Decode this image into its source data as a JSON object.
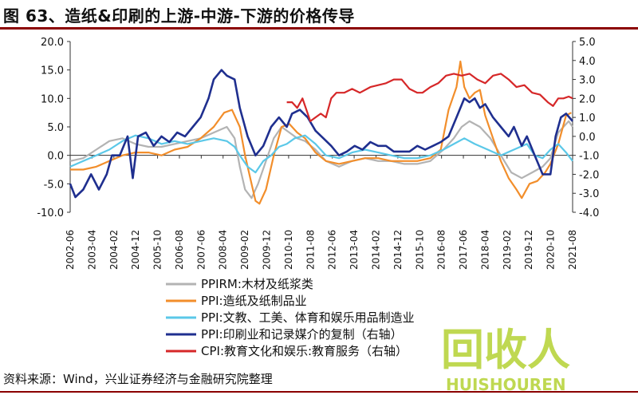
{
  "figure": {
    "title": "图 63、造纸&印刷的上游-中游-下游的价格传导",
    "source": "资料来源：Wind，兴业证券经济与金融研究院整理",
    "watermark_text": "回收人",
    "watermark_sub": "HUISHOUREN"
  },
  "chart_data": {
    "type": "line",
    "x_ticks": [
      "2002-06",
      "2003-04",
      "2004-02",
      "2004-12",
      "2005-10",
      "2006-08",
      "2007-06",
      "2008-04",
      "2009-02",
      "2009-12",
      "2010-10",
      "2011-08",
      "2012-06",
      "2013-04",
      "2014-02",
      "2014-12",
      "2015-10",
      "2016-08",
      "2017-06",
      "2018-04",
      "2019-02",
      "2019-12",
      "2020-10",
      "2021-08"
    ],
    "y_left": {
      "min": -10,
      "max": 20,
      "ticks": [
        "20.0",
        "15.0",
        "10.0",
        "5.0",
        "0.0",
        "-5.0",
        "-10.0"
      ]
    },
    "y_right": {
      "min": -4,
      "max": 5,
      "ticks": [
        "5.0",
        "4.0",
        "3.0",
        "2.0",
        "1.0",
        "0.0",
        "-1.0",
        "-2.0",
        "-3.0",
        "-4.0"
      ]
    },
    "grid": false,
    "legend_position": "bottom-center",
    "series": [
      {
        "name": "PPIRM:木材及纸浆类",
        "color": "#b3b3b3",
        "axis": "left",
        "points": [
          [
            2002.5,
            -1
          ],
          [
            2003.0,
            -0.5
          ],
          [
            2003.5,
            1
          ],
          [
            2004.0,
            2.5
          ],
          [
            2004.5,
            3
          ],
          [
            2005.0,
            2
          ],
          [
            2005.5,
            1.5
          ],
          [
            2006.0,
            1.5
          ],
          [
            2006.5,
            2
          ],
          [
            2007.0,
            2.5
          ],
          [
            2007.5,
            3
          ],
          [
            2008.0,
            4
          ],
          [
            2008.5,
            5
          ],
          [
            2008.8,
            3
          ],
          [
            2009.0,
            -2
          ],
          [
            2009.2,
            -6
          ],
          [
            2009.45,
            -7.5
          ],
          [
            2009.7,
            -5
          ],
          [
            2010.0,
            -1
          ],
          [
            2010.3,
            3
          ],
          [
            2010.6,
            5
          ],
          [
            2010.9,
            4
          ],
          [
            2011.2,
            3
          ],
          [
            2011.5,
            2.5
          ],
          [
            2011.9,
            1
          ],
          [
            2012.3,
            -1
          ],
          [
            2012.8,
            -2
          ],
          [
            2013.3,
            -1
          ],
          [
            2013.8,
            -0.5
          ],
          [
            2014.3,
            -1
          ],
          [
            2014.8,
            -1
          ],
          [
            2015.3,
            -1.5
          ],
          [
            2015.8,
            -1.5
          ],
          [
            2016.3,
            -1
          ],
          [
            2016.8,
            1
          ],
          [
            2017.2,
            3
          ],
          [
            2017.5,
            5
          ],
          [
            2017.8,
            6
          ],
          [
            2018.2,
            5
          ],
          [
            2018.6,
            3
          ],
          [
            2019.0,
            0
          ],
          [
            2019.4,
            -3
          ],
          [
            2019.8,
            -4
          ],
          [
            2020.2,
            -3
          ],
          [
            2020.6,
            -2
          ],
          [
            2020.9,
            -0.5
          ],
          [
            2021.2,
            4
          ],
          [
            2021.6,
            6
          ],
          [
            2021.75,
            5
          ]
        ]
      },
      {
        "name": "PPI:造纸及纸制品业",
        "color": "#f28e2b",
        "axis": "left",
        "points": [
          [
            2002.5,
            -2.5
          ],
          [
            2003.0,
            -2.5
          ],
          [
            2003.5,
            -2
          ],
          [
            2004.0,
            -1
          ],
          [
            2004.5,
            0
          ],
          [
            2005.0,
            0.5
          ],
          [
            2005.5,
            0.5
          ],
          [
            2006.0,
            0
          ],
          [
            2006.5,
            1
          ],
          [
            2007.0,
            1.5
          ],
          [
            2007.5,
            3
          ],
          [
            2008.0,
            5
          ],
          [
            2008.4,
            7.5
          ],
          [
            2008.7,
            8
          ],
          [
            2009.0,
            5
          ],
          [
            2009.2,
            0
          ],
          [
            2009.4,
            -4
          ],
          [
            2009.6,
            -8
          ],
          [
            2009.75,
            -8.5
          ],
          [
            2010.0,
            -6
          ],
          [
            2010.3,
            0
          ],
          [
            2010.6,
            5
          ],
          [
            2010.9,
            5.5
          ],
          [
            2011.2,
            4
          ],
          [
            2011.5,
            3
          ],
          [
            2011.9,
            0.5
          ],
          [
            2012.3,
            -1
          ],
          [
            2012.8,
            -1.5
          ],
          [
            2013.3,
            -1
          ],
          [
            2013.8,
            -0.5
          ],
          [
            2014.3,
            -0.5
          ],
          [
            2014.8,
            -1
          ],
          [
            2015.3,
            -1
          ],
          [
            2015.8,
            -1
          ],
          [
            2016.3,
            -0.5
          ],
          [
            2016.7,
            1
          ],
          [
            2017.0,
            8
          ],
          [
            2017.3,
            12
          ],
          [
            2017.45,
            16.5
          ],
          [
            2017.6,
            12
          ],
          [
            2017.8,
            10
          ],
          [
            2018.0,
            11
          ],
          [
            2018.2,
            11.5
          ],
          [
            2018.4,
            7
          ],
          [
            2018.7,
            3
          ],
          [
            2019.0,
            -1
          ],
          [
            2019.3,
            -4
          ],
          [
            2019.6,
            -6
          ],
          [
            2019.8,
            -7.5
          ],
          [
            2020.1,
            -5
          ],
          [
            2020.4,
            -4.5
          ],
          [
            2020.7,
            -3
          ],
          [
            2020.9,
            -1.5
          ],
          [
            2021.2,
            2
          ],
          [
            2021.5,
            7
          ],
          [
            2021.7,
            7.5
          ]
        ]
      },
      {
        "name": "PPI:文教、工美、体育和娱乐用品制造业",
        "color": "#5bc8e8",
        "axis": "left",
        "points": [
          [
            2002.5,
            -2
          ],
          [
            2003.0,
            -1
          ],
          [
            2003.5,
            0
          ],
          [
            2004.0,
            1
          ],
          [
            2004.5,
            2.5
          ],
          [
            2005.0,
            3.5
          ],
          [
            2005.5,
            3
          ],
          [
            2006.0,
            2
          ],
          [
            2006.5,
            2.5
          ],
          [
            2007.0,
            2
          ],
          [
            2007.5,
            2.5
          ],
          [
            2008.0,
            3
          ],
          [
            2008.5,
            2.5
          ],
          [
            2008.8,
            1.5
          ],
          [
            2009.0,
            0
          ],
          [
            2009.3,
            -2
          ],
          [
            2009.6,
            -3
          ],
          [
            2009.9,
            -1
          ],
          [
            2010.2,
            0
          ],
          [
            2010.5,
            1.5
          ],
          [
            2010.8,
            2
          ],
          [
            2011.1,
            3
          ],
          [
            2011.5,
            3.5
          ],
          [
            2011.9,
            2
          ],
          [
            2012.3,
            0
          ],
          [
            2012.8,
            -0.5
          ],
          [
            2013.3,
            0.5
          ],
          [
            2013.8,
            1
          ],
          [
            2014.3,
            0.5
          ],
          [
            2014.8,
            0
          ],
          [
            2015.3,
            -0.5
          ],
          [
            2015.8,
            -0.5
          ],
          [
            2016.3,
            0
          ],
          [
            2016.8,
            1
          ],
          [
            2017.2,
            2
          ],
          [
            2017.6,
            3
          ],
          [
            2018.0,
            2
          ],
          [
            2018.5,
            1
          ],
          [
            2019.0,
            0
          ],
          [
            2019.5,
            1
          ],
          [
            2020.0,
            2
          ],
          [
            2020.3,
            0
          ],
          [
            2020.6,
            -0.5
          ],
          [
            2020.9,
            1
          ],
          [
            2021.2,
            2
          ],
          [
            2021.5,
            0.5
          ],
          [
            2021.75,
            -1
          ]
        ]
      },
      {
        "name": "PPI:印刷业和记录媒介的复制（右轴）",
        "color": "#1f2f8f",
        "axis": "right",
        "points": [
          [
            2002.5,
            -2.5
          ],
          [
            2002.7,
            -3.2
          ],
          [
            2003.0,
            -2.8
          ],
          [
            2003.3,
            -2
          ],
          [
            2003.6,
            -2.8
          ],
          [
            2003.9,
            -2
          ],
          [
            2004.1,
            -1
          ],
          [
            2004.4,
            -1
          ],
          [
            2004.7,
            0
          ],
          [
            2004.9,
            -2.2
          ],
          [
            2005.1,
            0
          ],
          [
            2005.4,
            0.2
          ],
          [
            2005.7,
            -0.5
          ],
          [
            2006.0,
            0
          ],
          [
            2006.3,
            -0.3
          ],
          [
            2006.6,
            0.2
          ],
          [
            2006.9,
            0
          ],
          [
            2007.2,
            0.5
          ],
          [
            2007.5,
            1
          ],
          [
            2007.8,
            2
          ],
          [
            2008.0,
            3
          ],
          [
            2008.3,
            3.5
          ],
          [
            2008.5,
            3.2
          ],
          [
            2008.8,
            3
          ],
          [
            2009.0,
            1.5
          ],
          [
            2009.3,
            0
          ],
          [
            2009.6,
            -1
          ],
          [
            2009.9,
            -0.5
          ],
          [
            2010.2,
            0.5
          ],
          [
            2010.5,
            1
          ],
          [
            2010.8,
            0.5
          ],
          [
            2011.0,
            1.2
          ],
          [
            2011.3,
            1.4
          ],
          [
            2011.6,
            1
          ],
          [
            2011.9,
            0.3
          ],
          [
            2012.2,
            -0.1
          ],
          [
            2012.5,
            -0.5
          ],
          [
            2012.8,
            -1
          ],
          [
            2013.1,
            -0.8
          ],
          [
            2013.4,
            -0.5
          ],
          [
            2013.7,
            -0.7
          ],
          [
            2014.0,
            -0.3
          ],
          [
            2014.3,
            -0.5
          ],
          [
            2014.6,
            -0.5
          ],
          [
            2014.9,
            -0.8
          ],
          [
            2015.2,
            -0.8
          ],
          [
            2015.5,
            -0.8
          ],
          [
            2015.8,
            -0.5
          ],
          [
            2016.1,
            -0.7
          ],
          [
            2016.4,
            -0.5
          ],
          [
            2016.7,
            -0.3
          ],
          [
            2017.0,
            0
          ],
          [
            2017.3,
            1
          ],
          [
            2017.6,
            2
          ],
          [
            2017.8,
            1.8
          ],
          [
            2018.0,
            2
          ],
          [
            2018.2,
            1.5
          ],
          [
            2018.4,
            1.7
          ],
          [
            2018.7,
            1
          ],
          [
            2019.0,
            0.5
          ],
          [
            2019.3,
            0
          ],
          [
            2019.5,
            0.5
          ],
          [
            2019.8,
            -0.5
          ],
          [
            2020.0,
            0
          ],
          [
            2020.3,
            -1
          ],
          [
            2020.6,
            -2
          ],
          [
            2020.9,
            -2
          ],
          [
            2021.1,
            0
          ],
          [
            2021.3,
            1
          ],
          [
            2021.5,
            1.2
          ],
          [
            2021.75,
            0.8
          ]
        ]
      },
      {
        "name": "CPI:教育文化和娱乐:教育服务（右轴）",
        "color": "#d62728",
        "axis": "right",
        "points": [
          [
            2010.8,
            1.8
          ],
          [
            2011.0,
            1.8
          ],
          [
            2011.2,
            1.5
          ],
          [
            2011.4,
            2
          ],
          [
            2011.7,
            0.8
          ],
          [
            2011.9,
            1
          ],
          [
            2012.1,
            1.2
          ],
          [
            2012.3,
            1
          ],
          [
            2012.5,
            2
          ],
          [
            2012.7,
            2.3
          ],
          [
            2013.0,
            2.3
          ],
          [
            2013.3,
            2.5
          ],
          [
            2013.6,
            2.3
          ],
          [
            2014.0,
            2.6
          ],
          [
            2014.3,
            2.7
          ],
          [
            2014.6,
            2.8
          ],
          [
            2014.9,
            3
          ],
          [
            2015.2,
            3
          ],
          [
            2015.5,
            2.5
          ],
          [
            2015.8,
            2.3
          ],
          [
            2016.0,
            2.3
          ],
          [
            2016.3,
            2.6
          ],
          [
            2016.6,
            2.8
          ],
          [
            2016.9,
            3.2
          ],
          [
            2017.2,
            3.3
          ],
          [
            2017.5,
            3.2
          ],
          [
            2017.8,
            3.3
          ],
          [
            2018.1,
            3
          ],
          [
            2018.4,
            2.8
          ],
          [
            2018.7,
            3.2
          ],
          [
            2019.0,
            3.3
          ],
          [
            2019.3,
            3
          ],
          [
            2019.6,
            2.6
          ],
          [
            2019.9,
            2.7
          ],
          [
            2020.2,
            2.3
          ],
          [
            2020.5,
            2.2
          ],
          [
            2020.8,
            1.8
          ],
          [
            2021.0,
            1.6
          ],
          [
            2021.2,
            2
          ],
          [
            2021.4,
            2
          ],
          [
            2021.6,
            2.1
          ],
          [
            2021.75,
            2
          ]
        ]
      }
    ]
  }
}
